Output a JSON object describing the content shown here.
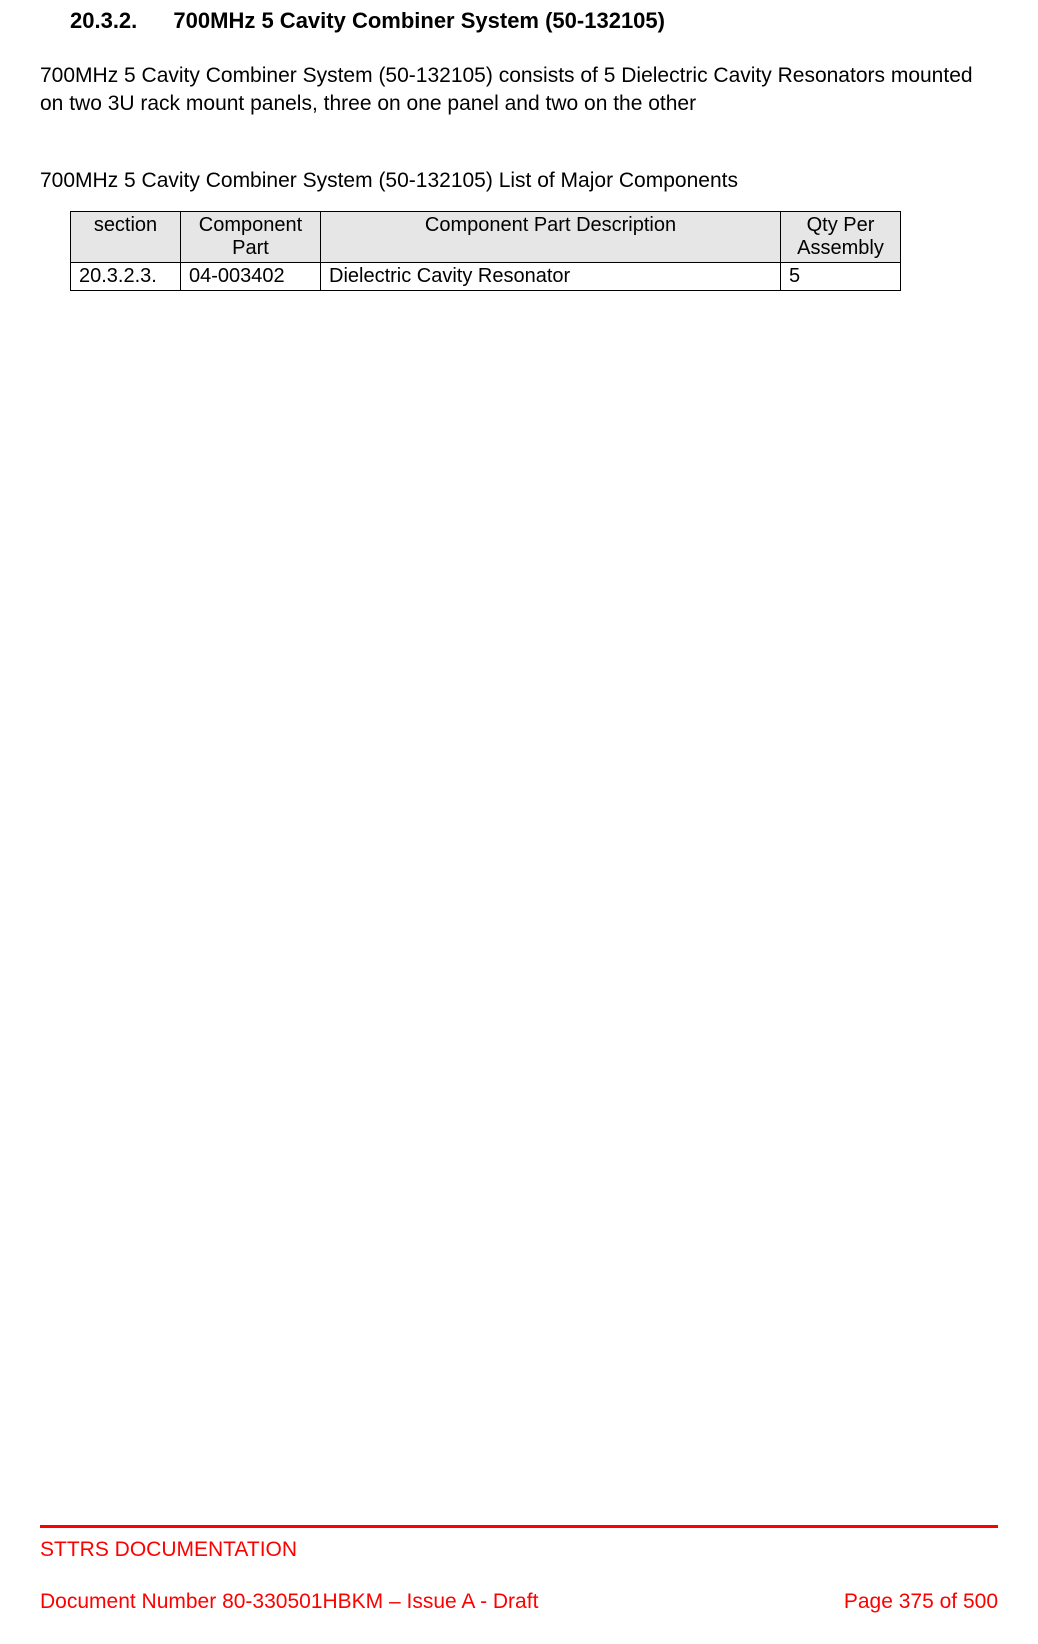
{
  "heading": {
    "number": "20.3.2.",
    "title_prefix": "700MHz 5",
    "title_rest": " Cavity Combiner System (50-132105)"
  },
  "paragraph": "700MHz 5 Cavity Combiner System (50-132105) consists of 5 Dielectric Cavity Resonators mounted on two 3U rack mount panels, three on one panel and two on the other",
  "subheading": "700MHz 5 Cavity Combiner System (50-132105) List of Major Components",
  "table": {
    "headers": {
      "section": "section",
      "part": "Component Part",
      "desc": "Component Part Description",
      "qty": "Qty Per Assembly"
    },
    "rows": [
      {
        "section": "20.3.2.3.",
        "part": "04-003402",
        "desc": "Dielectric Cavity Resonator",
        "qty": "5"
      }
    ]
  },
  "footer": {
    "title": "STTRS DOCUMENTATION",
    "docnum": "Document Number 80-330501HBKM – Issue A - Draft",
    "page": "Page 375 of 500"
  }
}
